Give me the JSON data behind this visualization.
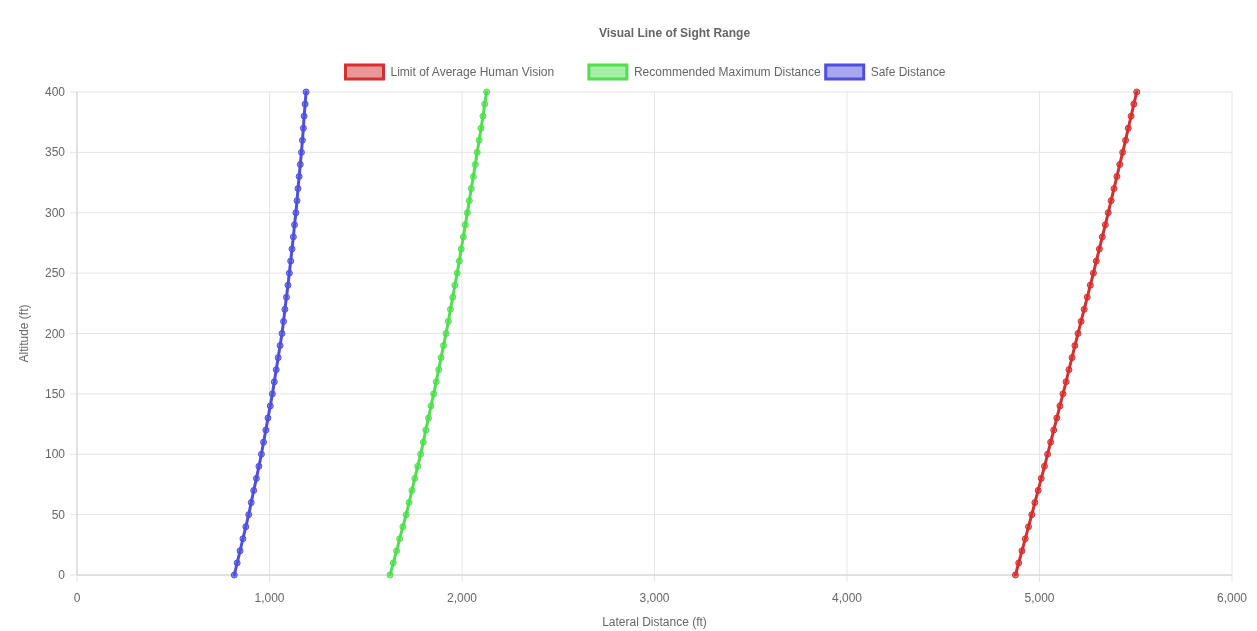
{
  "chart_data": {
    "type": "line",
    "title": "Visual Line of Sight Range",
    "xlabel": "Lateral Distance (ft)",
    "ylabel": "Altitude (ft)",
    "xlim": [
      0,
      6000
    ],
    "xticks": [
      0,
      {
        "value": 1000,
        "label": "1,000"
      },
      {
        "value": 2000,
        "label": "2,000"
      },
      {
        "value": 3000,
        "label": "3,000"
      },
      {
        "value": 4000,
        "label": "4,000"
      },
      {
        "value": 5000,
        "label": "5,000"
      },
      {
        "value": 6000,
        "label": "6,000"
      }
    ],
    "ylim": [
      0,
      400
    ],
    "yticks": [
      0,
      50,
      100,
      150,
      200,
      250,
      300,
      350,
      400
    ],
    "grid": true,
    "legend": "top",
    "marker": "circle",
    "line_style": "solid",
    "series": [
      {
        "name": "Limit of Average Human Vision",
        "color": "#d62f2f",
        "x": [
          4875,
          4892,
          4909,
          4926,
          4943,
          4960,
          4976,
          4993,
          5009,
          5026,
          5042,
          5058,
          5074,
          5090,
          5106,
          5122,
          5138,
          5153,
          5169,
          5184,
          5200,
          5216,
          5232,
          5248,
          5264,
          5280,
          5295,
          5311,
          5326,
          5342,
          5357,
          5372,
          5387,
          5402,
          5417,
          5432,
          5447,
          5461,
          5476,
          5490,
          5505
        ],
        "values": [
          0,
          10,
          20,
          30,
          40,
          50,
          60,
          70,
          80,
          90,
          100,
          110,
          120,
          130,
          140,
          150,
          160,
          170,
          180,
          190,
          200,
          210,
          220,
          230,
          240,
          250,
          260,
          270,
          280,
          290,
          300,
          310,
          320,
          330,
          340,
          350,
          360,
          370,
          380,
          390,
          400
        ]
      },
      {
        "name": "Recommended Maximum Distance",
        "color": "#4fdf4f",
        "x": [
          1626,
          1643,
          1660,
          1676,
          1693,
          1710,
          1725,
          1740,
          1755,
          1770,
          1785,
          1799,
          1812,
          1826,
          1839,
          1853,
          1866,
          1879,
          1891,
          1904,
          1917,
          1929,
          1940,
          1952,
          1963,
          1975,
          1986,
          1996,
          2007,
          2017,
          2028,
          2038,
          2048,
          2059,
          2069,
          2079,
          2089,
          2099,
          2109,
          2118,
          2128
        ],
        "values": [
          0,
          10,
          20,
          30,
          40,
          50,
          60,
          70,
          80,
          90,
          100,
          110,
          120,
          130,
          140,
          150,
          160,
          170,
          180,
          190,
          200,
          210,
          220,
          230,
          240,
          250,
          260,
          270,
          280,
          290,
          300,
          310,
          320,
          330,
          340,
          350,
          360,
          370,
          380,
          390,
          400
        ]
      },
      {
        "name": "Safe Distance",
        "color": "#4f4fdf",
        "x": [
          817,
          832,
          847,
          862,
          877,
          892,
          905,
          918,
          932,
          945,
          958,
          969,
          981,
          992,
          1004,
          1015,
          1025,
          1035,
          1045,
          1055,
          1065,
          1073,
          1080,
          1088,
          1096,
          1103,
          1110,
          1117,
          1124,
          1130,
          1137,
          1143,
          1148,
          1154,
          1160,
          1166,
          1171,
          1176,
          1180,
          1185,
          1190
        ],
        "values": [
          0,
          10,
          20,
          30,
          40,
          50,
          60,
          70,
          80,
          90,
          100,
          110,
          120,
          130,
          140,
          150,
          160,
          170,
          180,
          190,
          200,
          210,
          220,
          230,
          240,
          250,
          260,
          270,
          280,
          290,
          300,
          310,
          320,
          330,
          340,
          350,
          360,
          370,
          380,
          390,
          400
        ]
      }
    ]
  }
}
